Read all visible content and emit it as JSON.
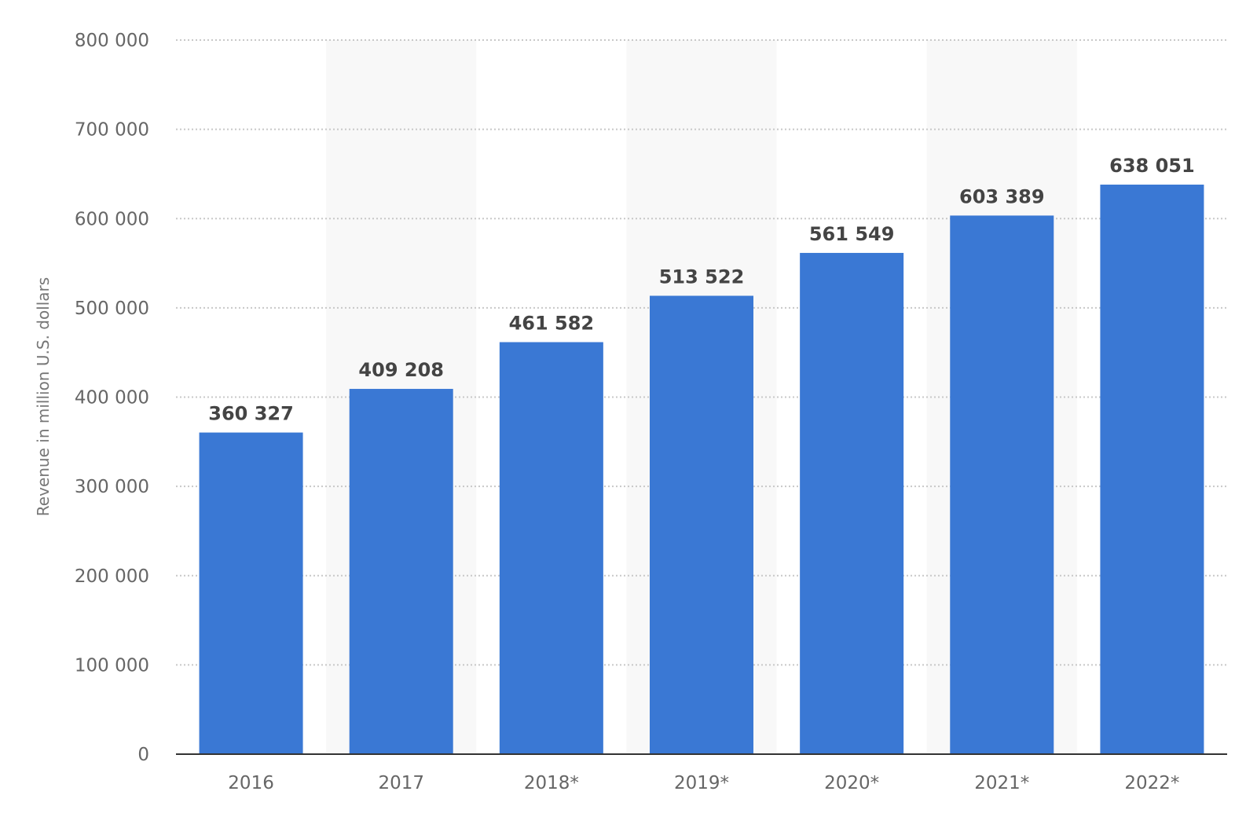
{
  "chart_data": {
    "type": "bar",
    "title": "",
    "xlabel": "",
    "ylabel": "Revenue in million U.S. dollars",
    "categories": [
      "2016",
      "2017",
      "2018*",
      "2019*",
      "2020*",
      "2021*",
      "2022*"
    ],
    "values": [
      360327,
      409208,
      461582,
      513522,
      561549,
      603389,
      638051
    ],
    "value_labels": [
      "360 327",
      "409 208",
      "461 582",
      "513 522",
      "561 549",
      "603 389",
      "638 051"
    ],
    "ylim": [
      0,
      800000
    ],
    "yticks": [
      0,
      100000,
      200000,
      300000,
      400000,
      500000,
      600000,
      700000,
      800000
    ],
    "ytick_labels": [
      "0",
      "100 000",
      "200 000",
      "300 000",
      "400 000",
      "500 000",
      "600 000",
      "700 000",
      "800 000"
    ],
    "grid": "horizontal-dotted",
    "alternating_column_shading": true,
    "legend": "none",
    "colors": {
      "bar": "#3a78d4",
      "gridline": "#c8c8c8",
      "column_band": "#f8f8f8",
      "axis_line": "#333333",
      "value_label": "#444444",
      "tick_label": "#666666"
    }
  }
}
